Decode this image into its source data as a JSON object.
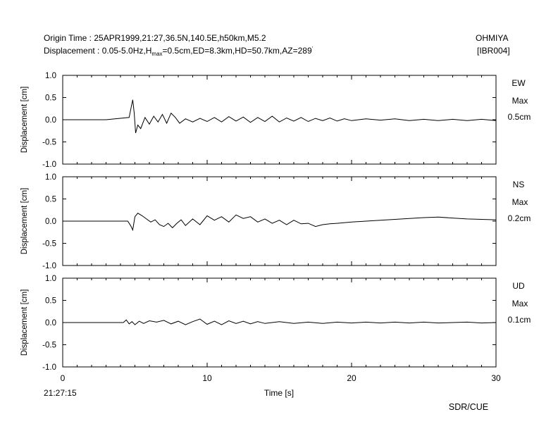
{
  "header": {
    "origin_time": "Origin Time : 25APR1999,21:27,36.5N,140.5E,h50km,M5.2",
    "disp_prefix": "Displacement : 0.05-5.0Hz,H",
    "disp_sub": "max",
    "disp_suffix": "=0.5cm,ED=8.3km,HD=50.7km,AZ=289",
    "disp_deg": "'",
    "station": "OHMIYA",
    "station_code": "[IBR004]"
  },
  "footer": {
    "start_time": "21:27:15",
    "credit": "SDR/CUE"
  },
  "colors": {
    "trace": "#000000",
    "axis": "#000000",
    "background": "#ffffff"
  },
  "chart_data": {
    "type": "line",
    "xlabel": "Time [s]",
    "xlim": [
      0,
      30
    ],
    "xticks": [
      0,
      10,
      20,
      30
    ],
    "xtick_labels": [
      "0",
      "10",
      "20",
      "30"
    ],
    "panels": [
      {
        "component": "EW",
        "max_label": "Max",
        "max_value": "0.5cm",
        "ylabel": "Displacement [cm]",
        "ylim": [
          -1.0,
          1.0
        ],
        "yticks": [
          1.0,
          0.5,
          0.0,
          -0.5,
          -1.0
        ],
        "ytick_labels": [
          "1.0",
          "0.5",
          "0.0",
          "-0.5",
          "-1.0"
        ],
        "x": [
          0,
          3,
          4.6,
          4.75,
          4.85,
          4.95,
          5.05,
          5.2,
          5.4,
          5.7,
          6.0,
          6.3,
          6.6,
          6.9,
          7.2,
          7.5,
          7.8,
          8.1,
          8.5,
          9.0,
          9.5,
          10,
          10.5,
          11,
          11.5,
          12,
          12.5,
          13,
          13.5,
          14,
          14.5,
          15,
          15.5,
          16,
          16.5,
          17,
          17.5,
          18,
          18.5,
          19,
          19.5,
          20,
          21,
          22,
          23,
          24,
          25,
          26,
          27,
          28,
          29,
          30
        ],
        "y": [
          0,
          0,
          0.05,
          0.3,
          0.45,
          0.15,
          -0.3,
          -0.12,
          -0.2,
          0.05,
          -0.1,
          0.08,
          -0.05,
          0.12,
          -0.08,
          0.15,
          0.05,
          -0.08,
          0.02,
          -0.05,
          0.03,
          -0.04,
          0.05,
          -0.05,
          0.07,
          -0.03,
          0.06,
          -0.06,
          0.05,
          -0.04,
          0.08,
          -0.05,
          0.04,
          -0.03,
          0.05,
          -0.04,
          0.03,
          -0.02,
          0.04,
          -0.03,
          0.02,
          -0.02,
          0.02,
          -0.01,
          0.02,
          -0.02,
          0.01,
          -0.02,
          0.01,
          -0.02,
          0.01,
          -0.02
        ]
      },
      {
        "component": "NS",
        "max_label": "Max",
        "max_value": "0.2cm",
        "ylabel": "Displacement [cm]",
        "ylim": [
          -1.0,
          1.0
        ],
        "yticks": [
          1.0,
          0.5,
          0.0,
          -0.5,
          -1.0
        ],
        "ytick_labels": [
          "1.0",
          "0.5",
          "0.0",
          "-0.5",
          "-1.0"
        ],
        "x": [
          0,
          4.5,
          4.7,
          4.85,
          5.0,
          5.2,
          5.5,
          5.8,
          6.1,
          6.4,
          6.7,
          7.0,
          7.3,
          7.6,
          7.9,
          8.2,
          8.5,
          9.0,
          9.5,
          10,
          10.5,
          11,
          11.5,
          12,
          12.5,
          13,
          13.5,
          14,
          14.5,
          15,
          15.5,
          16,
          16.5,
          17,
          17.5,
          18,
          18.5,
          19,
          20,
          21,
          22,
          23,
          24,
          25,
          26,
          27,
          28,
          29,
          30
        ],
        "y": [
          0,
          0,
          -0.1,
          -0.2,
          0.1,
          0.18,
          0.12,
          0.05,
          -0.02,
          0.03,
          -0.08,
          -0.12,
          -0.05,
          -0.15,
          -0.05,
          0.03,
          -0.1,
          0.05,
          -0.08,
          0.12,
          0.02,
          0.1,
          -0.02,
          0.14,
          0.06,
          0.1,
          -0.02,
          0.05,
          -0.05,
          0.02,
          -0.08,
          0.02,
          -0.06,
          -0.05,
          -0.12,
          -0.08,
          -0.06,
          -0.05,
          -0.02,
          0.0,
          0.02,
          0.04,
          0.06,
          0.08,
          0.09,
          0.07,
          0.05,
          0.04,
          0.03
        ]
      },
      {
        "component": "UD",
        "max_label": "Max",
        "max_value": "0.1cm",
        "ylabel": "Displacement [cm]",
        "ylim": [
          -1.0,
          1.0
        ],
        "yticks": [
          1.0,
          0.5,
          0.0,
          -0.5,
          -1.0
        ],
        "ytick_labels": [
          "1.0",
          "0.5",
          "0.0",
          "-0.5",
          "-1.0"
        ],
        "x": [
          0,
          4.2,
          4.4,
          4.6,
          4.8,
          5.0,
          5.3,
          5.6,
          6.0,
          6.5,
          7.0,
          7.5,
          8.0,
          8.5,
          9.0,
          9.5,
          10,
          10.5,
          11,
          11.5,
          12,
          12.5,
          13,
          13.5,
          14,
          15,
          16,
          17,
          18,
          19,
          20,
          21,
          22,
          23,
          24,
          25,
          26,
          27,
          28,
          29,
          30
        ],
        "y": [
          0,
          0,
          0.06,
          -0.03,
          0.02,
          -0.05,
          0.03,
          -0.02,
          0.04,
          0.01,
          0.05,
          -0.03,
          0.03,
          -0.05,
          0.02,
          0.08,
          -0.04,
          0.03,
          -0.05,
          0.04,
          -0.02,
          0.03,
          -0.03,
          0.02,
          -0.02,
          0.02,
          -0.02,
          0.01,
          -0.02,
          0.01,
          -0.01,
          0.01,
          -0.01,
          0.01,
          -0.01,
          0.01,
          -0.01,
          0.0,
          0.01,
          -0.01,
          0.0
        ]
      }
    ]
  }
}
